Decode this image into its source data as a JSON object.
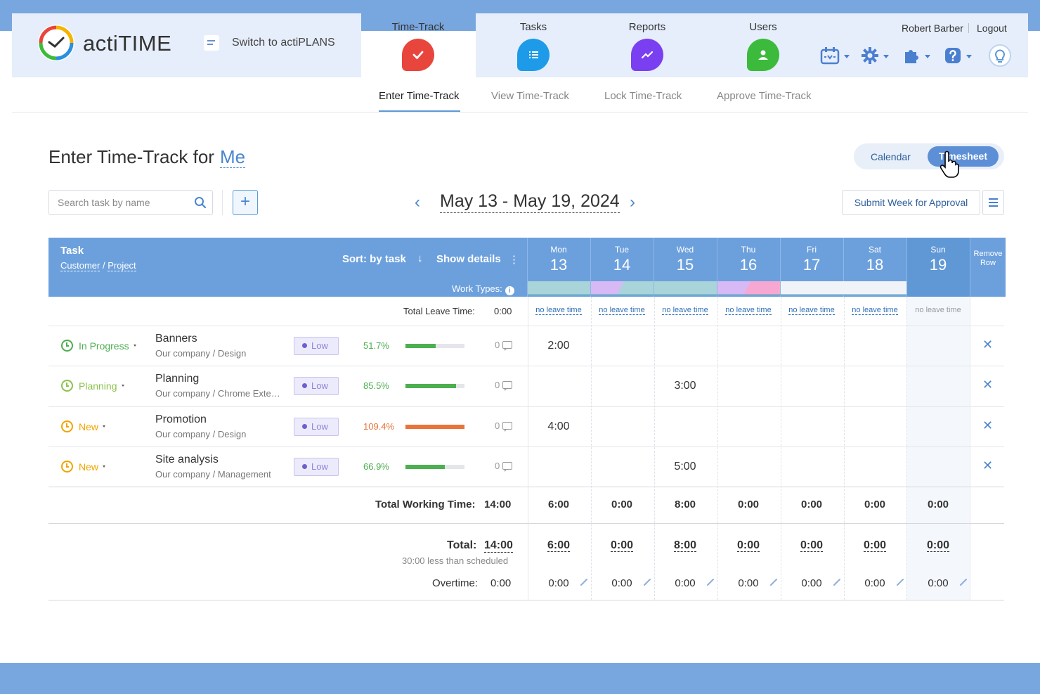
{
  "header": {
    "logo_text": "actiTIME",
    "switch_label": "Switch to actiPLANS",
    "nav": [
      {
        "label": "Time-Track",
        "icon": "checkmark-icon",
        "color": "#e8453c"
      },
      {
        "label": "Tasks",
        "icon": "task-list-icon",
        "color": "#1e9be8"
      },
      {
        "label": "Reports",
        "icon": "chart-icon",
        "color": "#7a3ff0"
      },
      {
        "label": "Users",
        "icon": "user-icon",
        "color": "#3cba3c"
      }
    ],
    "user_name": "Robert Barber",
    "logout_label": "Logout"
  },
  "subnav": [
    "Enter Time-Track",
    "View Time-Track",
    "Lock Time-Track",
    "Approve Time-Track"
  ],
  "page": {
    "title": "Enter Time-Track for",
    "title_user": "Me",
    "toggle_calendar": "Calendar",
    "toggle_timesheet": "Timesheet",
    "search_placeholder": "Search task by name",
    "week_range": "May 13 - May 19, 2024",
    "submit_label": "Submit Week for Approval"
  },
  "grid": {
    "task_header": "Task",
    "customer_label": "Customer",
    "project_label": "Project",
    "sort_label": "Sort: by task",
    "details_label": "Show details",
    "work_types_label": "Work Types:",
    "remove_header": "Remove Row",
    "days": [
      {
        "name": "Mon",
        "date": "13"
      },
      {
        "name": "Tue",
        "date": "14"
      },
      {
        "name": "Wed",
        "date": "15"
      },
      {
        "name": "Thu",
        "date": "16"
      },
      {
        "name": "Fri",
        "date": "17"
      },
      {
        "name": "Sat",
        "date": "18"
      },
      {
        "name": "Sun",
        "date": "19"
      }
    ],
    "total_leave_label": "Total Leave Time:",
    "total_leave_value": "0:00",
    "leave_cell_text": "no leave time",
    "tasks": [
      {
        "status": "In Progress",
        "status_color": "#4caf50",
        "name": "Banners",
        "sub": "Our company / Design",
        "priority": "Low",
        "percent": "51.7%",
        "percent_value": 51.7,
        "percent_color": "#4caf50",
        "comments": "0",
        "times": [
          "2:00",
          "",
          "",
          "",
          "",
          "",
          ""
        ]
      },
      {
        "status": "Planning",
        "status_color": "#8bc34a",
        "name": "Planning",
        "sub": "Our company / Chrome Extension",
        "priority": "Low",
        "percent": "85.5%",
        "percent_value": 85.5,
        "percent_color": "#4caf50",
        "comments": "0",
        "times": [
          "",
          "",
          "3:00",
          "",
          "",
          "",
          ""
        ]
      },
      {
        "status": "New",
        "status_color": "#f0a500",
        "name": "Promotion",
        "sub": "Our company / Design",
        "priority": "Low",
        "percent": "109.4%",
        "percent_value": 109.4,
        "percent_color": "#e8743c",
        "comments": "0",
        "times": [
          "4:00",
          "",
          "",
          "",
          "",
          "",
          ""
        ]
      },
      {
        "status": "New",
        "status_color": "#f0a500",
        "name": "Site analysis",
        "sub": "Our company / Management",
        "priority": "Low",
        "percent": "66.9%",
        "percent_value": 66.9,
        "percent_color": "#4caf50",
        "comments": "0",
        "times": [
          "",
          "",
          "5:00",
          "",
          "",
          "",
          ""
        ]
      }
    ],
    "total_working_label": "Total Working Time:",
    "total_working_value": "14:00",
    "total_working_days": [
      "6:00",
      "0:00",
      "8:00",
      "0:00",
      "0:00",
      "0:00",
      "0:00"
    ],
    "total_label": "Total:",
    "total_value": "14:00",
    "less_than_scheduled": "30:00 less than scheduled",
    "total_days": [
      "6:00",
      "0:00",
      "8:00",
      "0:00",
      "0:00",
      "0:00",
      "0:00"
    ],
    "overtime_label": "Overtime:",
    "overtime_value": "0:00",
    "overtime_days": [
      "0:00",
      "0:00",
      "0:00",
      "0:00",
      "0:00",
      "0:00",
      "0:00"
    ]
  }
}
